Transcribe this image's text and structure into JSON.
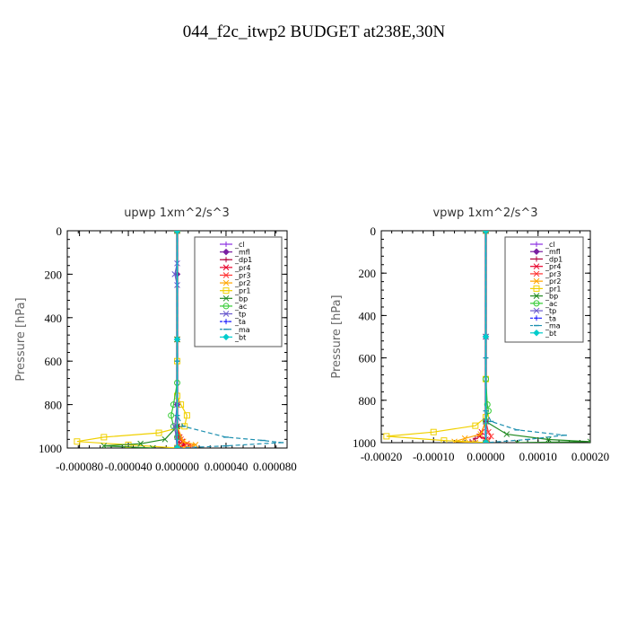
{
  "page": {
    "title": "044_f2c_itwp2  BUDGET at238E,30N"
  },
  "legend_labels": [
    "_cl",
    "_mfl",
    "_dp1",
    "_pr4",
    "_pr3",
    "_pr2",
    "_pr1",
    "_bp",
    "_ac",
    "_tp",
    "_ta",
    "_ma",
    "_bt"
  ],
  "series_colors": {
    "_cl": "#8a2be2",
    "_mfl": "#7a1fa2",
    "_dp1": "#b0003a",
    "_pr4": "#e8002a",
    "_pr3": "#ff3333",
    "_pr2": "#ffa500",
    "_pr1": "#f0d000",
    "_bp": "#228b22",
    "_ac": "#33cc33",
    "_tp": "#6a5acd",
    "_ta": "#1a1aff",
    "_ma": "#1e90b0",
    "_bt": "#00cccc"
  },
  "chart_data": [
    {
      "type": "line",
      "title": "upwp   1xm^2/s^3",
      "ylabel": "Pressure [hPa]",
      "xlim": [
        -9e-05,
        9e-05
      ],
      "ylim": [
        1000,
        0
      ],
      "xticks": [
        -8e-05,
        -4e-05,
        0.0,
        4e-05,
        8e-05
      ],
      "xtick_labels": [
        "-0.000080",
        "-0.000040",
        "0.000000",
        "0.000040",
        "0.000080"
      ],
      "yticks": [
        0,
        200,
        400,
        600,
        800,
        1000
      ],
      "ytick_labels": [
        "0",
        "200",
        "400",
        "600",
        "800",
        "1000"
      ],
      "legend": "top-right",
      "series": [
        {
          "name": "_cl",
          "points": [
            [
              0,
              0
            ],
            [
              0,
              200
            ],
            [
              0,
              500
            ],
            [
              0,
              800
            ],
            [
              0,
              900
            ],
            [
              0,
              960
            ],
            [
              0,
              1000
            ]
          ]
        },
        {
          "name": "_mfl",
          "points": [
            [
              0,
              0
            ],
            [
              0,
              200
            ],
            [
              0,
              500
            ],
            [
              0,
              800
            ],
            [
              0,
              900
            ],
            [
              0,
              1000
            ]
          ]
        },
        {
          "name": "_dp1",
          "points": [
            [
              0,
              0
            ],
            [
              0,
              500
            ],
            [
              0,
              900
            ],
            [
              0,
              950
            ],
            [
              2e-06,
              975
            ],
            [
              4e-06,
              990
            ],
            [
              0,
              1000
            ]
          ]
        },
        {
          "name": "_pr4",
          "points": [
            [
              0,
              0
            ],
            [
              0,
              500
            ],
            [
              0,
              900
            ],
            [
              2e-06,
              950
            ],
            [
              4e-06,
              970
            ],
            [
              6e-06,
              985
            ],
            [
              3e-06,
              995
            ],
            [
              0,
              1000
            ]
          ]
        },
        {
          "name": "_pr3",
          "points": [
            [
              0,
              0
            ],
            [
              0,
              500
            ],
            [
              0,
              900
            ],
            [
              3e-06,
              960
            ],
            [
              8e-06,
              980
            ],
            [
              1.2e-05,
              990
            ],
            [
              5e-06,
              1000
            ]
          ]
        },
        {
          "name": "_pr2",
          "points": [
            [
              0,
              0
            ],
            [
              0,
              500
            ],
            [
              0,
              900
            ],
            [
              5e-06,
              970
            ],
            [
              1.5e-05,
              985
            ],
            [
              5e-06,
              1000
            ]
          ]
        },
        {
          "name": "_pr1",
          "points": [
            [
              0,
              0
            ],
            [
              0,
              600
            ],
            [
              0,
              760
            ],
            [
              3e-06,
              800
            ],
            [
              8e-06,
              850
            ],
            [
              6e-06,
              900
            ],
            [
              -1.5e-05,
              930
            ],
            [
              -6e-05,
              950
            ],
            [
              -8.2e-05,
              970
            ],
            [
              -4e-05,
              985
            ],
            [
              0,
              1000
            ]
          ]
        },
        {
          "name": "_bp",
          "points": [
            [
              0,
              0
            ],
            [
              0,
              500
            ],
            [
              0,
              900
            ],
            [
              -1e-05,
              960
            ],
            [
              -3e-05,
              980
            ],
            [
              -6e-05,
              990
            ],
            [
              -2e-05,
              1000
            ]
          ]
        },
        {
          "name": "_ac",
          "points": [
            [
              0,
              0
            ],
            [
              0,
              700
            ],
            [
              -3e-06,
              800
            ],
            [
              -5e-06,
              850
            ],
            [
              -3e-06,
              900
            ],
            [
              0,
              950
            ],
            [
              0,
              1000
            ]
          ]
        },
        {
          "name": "_tp",
          "points": [
            [
              0,
              0
            ],
            [
              0,
              150
            ],
            [
              -2e-06,
              200
            ],
            [
              0,
              250
            ],
            [
              0,
              800
            ],
            [
              -2e-06,
              900
            ],
            [
              0,
              1000
            ]
          ]
        },
        {
          "name": "_ta",
          "points": [
            [
              0,
              0
            ],
            [
              0,
              500
            ],
            [
              0,
              1000
            ]
          ]
        },
        {
          "name": "_ma",
          "points": [
            [
              0,
              0
            ],
            [
              0,
              600
            ],
            [
              0,
              850
            ],
            [
              5e-06,
              900
            ],
            [
              4e-05,
              950
            ],
            [
              7e-05,
              965
            ],
            [
              8.5e-05,
              975
            ],
            [
              4e-05,
              990
            ],
            [
              0,
              1000
            ]
          ]
        },
        {
          "name": "_bt",
          "points": [
            [
              0,
              0
            ],
            [
              0,
              500
            ],
            [
              0,
              1000
            ]
          ]
        }
      ]
    },
    {
      "type": "line",
      "title": "vpwp   1xm^2/s^3",
      "ylabel": "Pressure [hPa]",
      "xlim": [
        -0.0002,
        0.0002
      ],
      "ylim": [
        1000,
        0
      ],
      "xticks": [
        -0.0002,
        -0.0001,
        0.0,
        0.0001,
        0.0002
      ],
      "xtick_labels": [
        "-0.00020",
        "-0.00010",
        "0.00000",
        "0.00010",
        "0.00020"
      ],
      "yticks": [
        0,
        200,
        400,
        600,
        800,
        1000
      ],
      "ytick_labels": [
        "0",
        "200",
        "400",
        "600",
        "800",
        "1000"
      ],
      "legend": "top-right",
      "series": [
        {
          "name": "_cl",
          "points": [
            [
              0,
              0
            ],
            [
              0,
              500
            ],
            [
              0,
              900
            ],
            [
              0,
              1000
            ]
          ]
        },
        {
          "name": "_mfl",
          "points": [
            [
              0,
              0
            ],
            [
              0,
              500
            ],
            [
              0,
              900
            ],
            [
              0,
              1000
            ]
          ]
        },
        {
          "name": "_dp1",
          "points": [
            [
              0,
              0
            ],
            [
              0,
              500
            ],
            [
              0,
              900
            ],
            [
              -1e-05,
              960
            ],
            [
              -2e-05,
              980
            ],
            [
              -3e-05,
              995
            ],
            [
              0,
              1000
            ]
          ]
        },
        {
          "name": "_pr4",
          "points": [
            [
              0,
              0
            ],
            [
              0,
              500
            ],
            [
              0,
              900
            ],
            [
              -8e-06,
              950
            ],
            [
              -1.2e-05,
              970
            ],
            [
              0,
              985
            ],
            [
              0,
              1000
            ]
          ]
        },
        {
          "name": "_pr3",
          "points": [
            [
              0,
              0
            ],
            [
              0,
              500
            ],
            [
              0,
              900
            ],
            [
              5e-06,
              950
            ],
            [
              1e-05,
              970
            ],
            [
              5e-06,
              990
            ],
            [
              0,
              1000
            ]
          ]
        },
        {
          "name": "_pr2",
          "points": [
            [
              0,
              0
            ],
            [
              0,
              500
            ],
            [
              0,
              900
            ],
            [
              -1e-05,
              960
            ],
            [
              -4e-05,
              980
            ],
            [
              -6e-05,
              995
            ],
            [
              -2e-05,
              1000
            ]
          ]
        },
        {
          "name": "_pr1",
          "points": [
            [
              0,
              0
            ],
            [
              0,
              700
            ],
            [
              0,
              880
            ],
            [
              -2e-05,
              920
            ],
            [
              -0.0001,
              950
            ],
            [
              -0.00019,
              970
            ],
            [
              -8e-05,
              990
            ],
            [
              0,
              1000
            ]
          ]
        },
        {
          "name": "_bp",
          "points": [
            [
              0,
              0
            ],
            [
              0,
              500
            ],
            [
              0,
              900
            ],
            [
              4e-05,
              960
            ],
            [
              0.00012,
              985
            ],
            [
              0.0002,
              995
            ],
            [
              6e-05,
              1000
            ]
          ]
        },
        {
          "name": "_ac",
          "points": [
            [
              0,
              0
            ],
            [
              0,
              700
            ],
            [
              3e-06,
              820
            ],
            [
              5e-06,
              850
            ],
            [
              0,
              900
            ],
            [
              0,
              1000
            ]
          ]
        },
        {
          "name": "_tp",
          "points": [
            [
              0,
              0
            ],
            [
              0,
              500
            ],
            [
              0,
              900
            ],
            [
              0,
              1000
            ]
          ]
        },
        {
          "name": "_ta",
          "points": [
            [
              0,
              0
            ],
            [
              0,
              500
            ],
            [
              0,
              1000
            ]
          ]
        },
        {
          "name": "_ma",
          "points": [
            [
              0,
              0
            ],
            [
              0,
              600
            ],
            [
              0,
              850
            ],
            [
              1e-05,
              900
            ],
            [
              6e-05,
              940
            ],
            [
              0.00015,
              965
            ],
            [
              8e-05,
              985
            ],
            [
              0,
              1000
            ]
          ]
        },
        {
          "name": "_bt",
          "points": [
            [
              0,
              0
            ],
            [
              0,
              500
            ],
            [
              0,
              1000
            ]
          ]
        }
      ]
    }
  ]
}
